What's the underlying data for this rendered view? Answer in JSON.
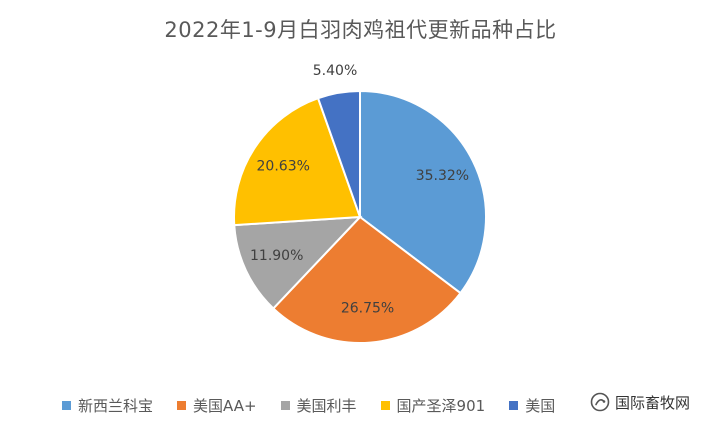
{
  "chart_data": {
    "type": "pie",
    "title": "2022年1-9月白羽肉鸡祖代更新品种占比",
    "categories": [
      "新西兰科宝",
      "美国AA+",
      "美国利丰",
      "国产圣泽901",
      "美国"
    ],
    "values": [
      35.32,
      26.75,
      11.9,
      20.63,
      5.4
    ],
    "labels": [
      "35.32%",
      "26.75%",
      "11.90%",
      "20.63%",
      "5.40%"
    ],
    "colors": [
      "#5B9BD5",
      "#ED7D31",
      "#A5A5A5",
      "#FFC000",
      "#4472C4"
    ],
    "legend_position": "bottom"
  },
  "watermark": {
    "text": "国际畜牧网",
    "icon": "wechat-official-account-icon"
  }
}
